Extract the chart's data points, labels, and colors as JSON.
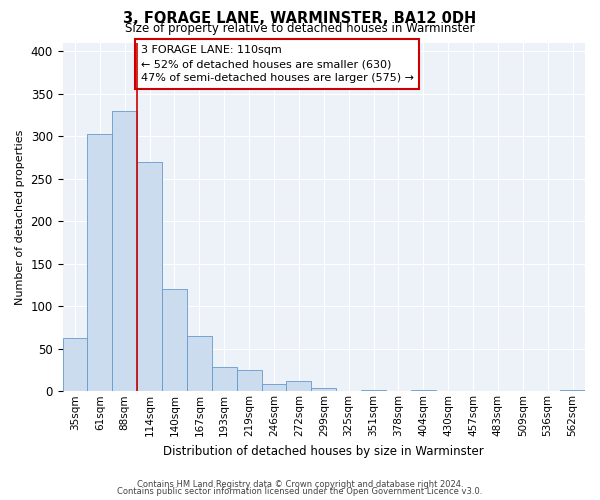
{
  "title": "3, FORAGE LANE, WARMINSTER, BA12 0DH",
  "subtitle": "Size of property relative to detached houses in Warminster",
  "xlabel": "Distribution of detached houses by size in Warminster",
  "ylabel": "Number of detached properties",
  "bar_labels": [
    "35sqm",
    "61sqm",
    "88sqm",
    "114sqm",
    "140sqm",
    "167sqm",
    "193sqm",
    "219sqm",
    "246sqm",
    "272sqm",
    "299sqm",
    "325sqm",
    "351sqm",
    "378sqm",
    "404sqm",
    "430sqm",
    "457sqm",
    "483sqm",
    "509sqm",
    "536sqm",
    "562sqm"
  ],
  "bar_values": [
    63,
    302,
    330,
    270,
    120,
    65,
    29,
    25,
    8,
    12,
    4,
    0,
    2,
    0,
    2,
    0,
    0,
    0,
    0,
    0,
    2
  ],
  "bar_color": "#ccdcef",
  "bar_edge_color": "#6699cc",
  "ylim": [
    0,
    410
  ],
  "yticks": [
    0,
    50,
    100,
    150,
    200,
    250,
    300,
    350,
    400
  ],
  "property_line_x": 3,
  "property_line_color": "#cc0000",
  "annotation_text": "3 FORAGE LANE: 110sqm\n← 52% of detached houses are smaller (630)\n47% of semi-detached houses are larger (575) →",
  "annotation_box_color": "#ffffff",
  "annotation_border_color": "#cc0000",
  "footer_line1": "Contains HM Land Registry data © Crown copyright and database right 2024.",
  "footer_line2": "Contains public sector information licensed under the Open Government Licence v3.0.",
  "bg_color": "#ffffff",
  "plot_bg_color": "#edf2f8"
}
